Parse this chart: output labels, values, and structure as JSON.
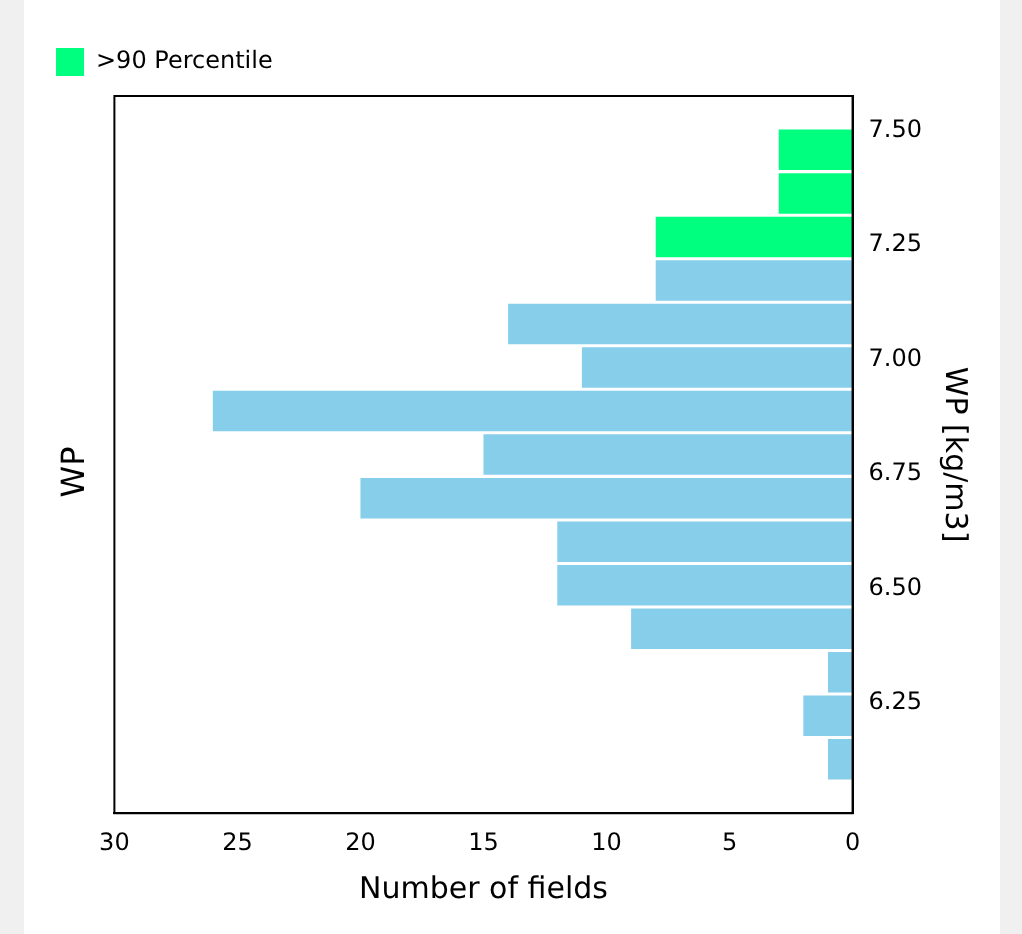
{
  "chart_data": {
    "type": "histogram",
    "orientation": "horizontal",
    "title": "WP",
    "xlabel": "Number of fields",
    "ylabel": "WP [kg/m3]",
    "bins": [
      6.08,
      6.175,
      6.27,
      6.365,
      6.46,
      6.555,
      6.65,
      6.745,
      6.84,
      6.935,
      7.03,
      7.125,
      7.22,
      7.315,
      7.41,
      7.505
    ],
    "series": [
      {
        "color": "#87ceeb",
        "values": [
          1,
          2,
          1,
          9,
          12,
          12,
          20,
          15,
          26,
          11,
          14,
          8,
          null,
          null,
          null
        ]
      },
      {
        "name": ">90 Percentile",
        "color": "#00ff7f",
        "values": [
          null,
          null,
          null,
          null,
          null,
          null,
          null,
          null,
          null,
          null,
          null,
          null,
          8,
          3,
          3
        ]
      }
    ],
    "ylim": [
      6.01,
      7.575
    ],
    "yticks": [
      {
        "value": 6.25,
        "label": "6.25"
      },
      {
        "value": 6.5,
        "label": "6.50"
      },
      {
        "value": 6.75,
        "label": "6.75"
      },
      {
        "value": 7.0,
        "label": "7.00"
      },
      {
        "value": 7.25,
        "label": "7.25"
      },
      {
        "value": 7.5,
        "label": "7.50"
      }
    ],
    "xlim": [
      30,
      0
    ],
    "xticks": [
      0,
      5,
      10,
      15,
      20,
      25,
      30
    ],
    "grid": false,
    "legend": "top left"
  }
}
